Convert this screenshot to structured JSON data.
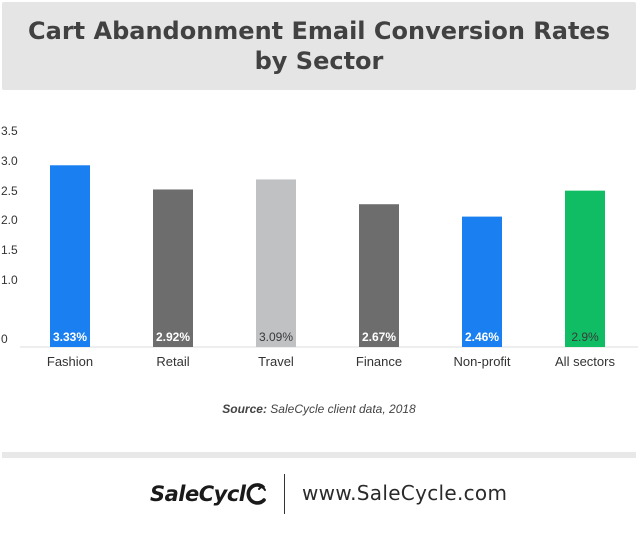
{
  "chart_data": {
    "type": "bar",
    "title": "Cart Abandonment Email Conversion Rates by Sector",
    "categories": [
      "Fashion",
      "Retail",
      "Travel",
      "Finance",
      "Non-profit",
      "All sectors"
    ],
    "values": [
      3.33,
      2.92,
      3.09,
      2.67,
      2.46,
      2.9
    ],
    "value_labels": [
      "3.33%",
      "2.92%",
      "3.09%",
      "2.67%",
      "2.46%",
      "2.9%"
    ],
    "bar_colors": [
      "#1a7ff0",
      "#6d6d6d",
      "#bfc1c3",
      "#6d6d6d",
      "#1a7ff0",
      "#11bd64"
    ],
    "label_colors": [
      "#ffffff",
      "#ffffff",
      "#3a3a3a",
      "#ffffff",
      "#ffffff",
      "#3a3a3a"
    ],
    "y_ticks": [
      "0",
      "1.0",
      "1.5",
      "2.0",
      "2.5",
      "3.0",
      "3.5"
    ],
    "ylim": [
      0,
      3.5
    ],
    "grid": false,
    "legend": "none",
    "xlabel": "",
    "ylabel": ""
  },
  "source": {
    "label": "Source:",
    "text": "SaleCycle client data, 2018"
  },
  "footer": {
    "logo_text": "SaleCycl",
    "url": "www.SaleCycle.com"
  }
}
